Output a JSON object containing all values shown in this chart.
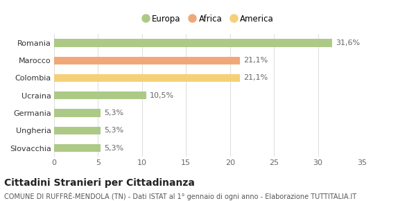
{
  "categories": [
    "Romania",
    "Marocco",
    "Colombia",
    "Ucraina",
    "Germania",
    "Ungheria",
    "Slovacchia"
  ],
  "values": [
    31.6,
    21.1,
    21.1,
    10.5,
    5.3,
    5.3,
    5.3
  ],
  "labels": [
    "31,6%",
    "21,1%",
    "21,1%",
    "10,5%",
    "5,3%",
    "5,3%",
    "5,3%"
  ],
  "colors": [
    "#adc986",
    "#f0a878",
    "#f5d078",
    "#adc986",
    "#adc986",
    "#adc986",
    "#adc986"
  ],
  "legend": [
    {
      "label": "Europa",
      "color": "#adc986"
    },
    {
      "label": "Africa",
      "color": "#f0a878"
    },
    {
      "label": "America",
      "color": "#f5d078"
    }
  ],
  "xlim": [
    0,
    35
  ],
  "xticks": [
    0,
    5,
    10,
    15,
    20,
    25,
    30,
    35
  ],
  "title": "Cittadini Stranieri per Cittadinanza",
  "subtitle": "COMUNE DI RUFFRÈ-MENDOLA (TN) - Dati ISTAT al 1° gennaio di ogni anno - Elaborazione TUTTITALIA.IT",
  "title_fontsize": 10,
  "subtitle_fontsize": 7,
  "background_color": "#ffffff",
  "grid_color": "#e0e0e0",
  "bar_height": 0.45,
  "label_fontsize": 8,
  "ytick_fontsize": 8,
  "xtick_fontsize": 8,
  "legend_fontsize": 8.5
}
